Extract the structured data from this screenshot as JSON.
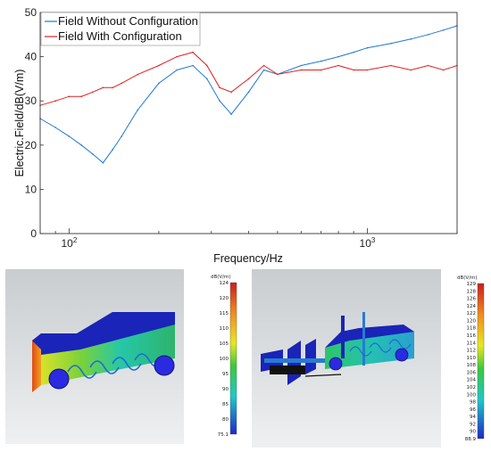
{
  "chart_data": {
    "type": "line",
    "title": "",
    "xlabel": "Frequency/Hz",
    "ylabel": "Electric.Field/dB(V/m)",
    "xscale": "log",
    "xlim": [
      80,
      2000
    ],
    "ylim": [
      0,
      50
    ],
    "xticks": [
      100,
      1000
    ],
    "xtick_labels": [
      "10^2",
      "10^3"
    ],
    "yticks": [
      0,
      10,
      20,
      30,
      40,
      50
    ],
    "grid": false,
    "legend_position": "top-left",
    "series": [
      {
        "name": "Field Without Configuration",
        "color": "#1f77d4",
        "x": [
          80,
          90,
          100,
          110,
          120,
          130,
          140,
          150,
          170,
          200,
          230,
          260,
          290,
          320,
          350,
          400,
          450,
          500,
          600,
          700,
          800,
          900,
          1000,
          1200,
          1400,
          1600,
          1800,
          2000
        ],
        "y": [
          26,
          24,
          22,
          20,
          18,
          16,
          19,
          22,
          28,
          34,
          37,
          38,
          35,
          30,
          27,
          32,
          37,
          36,
          38,
          39,
          40,
          41,
          42,
          43,
          44,
          45,
          46,
          47
        ]
      },
      {
        "name": "Field With Configuration",
        "color": "#e02020",
        "x": [
          80,
          90,
          100,
          110,
          120,
          130,
          140,
          150,
          170,
          200,
          230,
          260,
          290,
          320,
          350,
          400,
          450,
          500,
          600,
          700,
          800,
          900,
          1000,
          1200,
          1400,
          1600,
          1800,
          2000
        ],
        "y": [
          29,
          30,
          31,
          31,
          32,
          33,
          33,
          34,
          36,
          38,
          40,
          41,
          38,
          33,
          32,
          35,
          38,
          36,
          37,
          37,
          38,
          37,
          37,
          38,
          37,
          38,
          37,
          38
        ]
      }
    ]
  },
  "left_colorbar": {
    "unit": "dB(V/m)",
    "labels": [
      "124",
      "120",
      "115",
      "110",
      "105",
      "100",
      "95",
      "90",
      "85",
      "80",
      "75.1"
    ]
  },
  "right_colorbar": {
    "unit": "dB(V/m)",
    "labels": [
      "129",
      "128",
      "126",
      "124",
      "122",
      "120",
      "118",
      "116",
      "114",
      "112",
      "110",
      "108",
      "106",
      "104",
      "102",
      "100",
      "98",
      "96",
      "94",
      "92",
      "90",
      "88.9"
    ]
  },
  "colors": {
    "series1": "#1f77d4",
    "series2": "#e02020",
    "car_body": "#1a24b8",
    "wheel": "#2a2ae0"
  }
}
